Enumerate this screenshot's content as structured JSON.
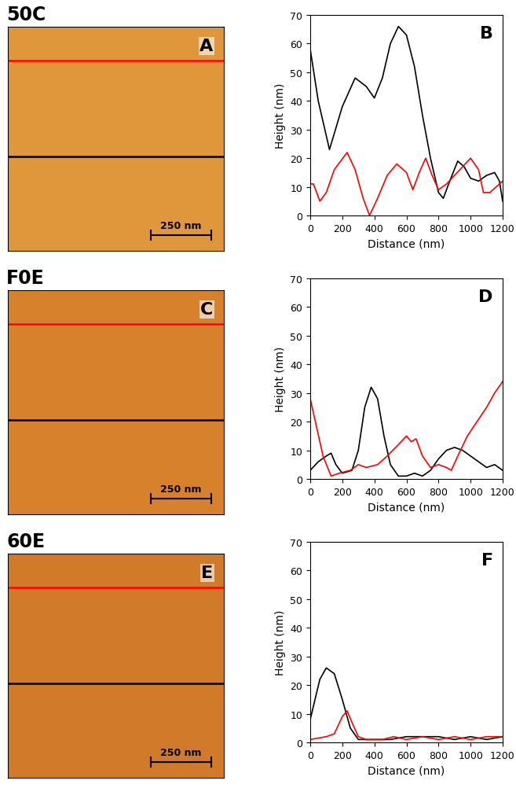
{
  "chart_data": [
    {
      "type": "line",
      "sample": "50C",
      "panel_label": "B",
      "x_label": "Distance (nm)",
      "y_label": "Height (nm)",
      "xlim": [
        0,
        1200
      ],
      "ylim": [
        0,
        70
      ],
      "xticks": [
        0,
        200,
        400,
        600,
        800,
        1000,
        1200
      ],
      "yticks": [
        0,
        10,
        20,
        30,
        40,
        50,
        60,
        70
      ],
      "series": [
        {
          "color": "#000000",
          "x": [
            0,
            50,
            120,
            200,
            280,
            350,
            400,
            450,
            500,
            550,
            600,
            650,
            700,
            750,
            800,
            830,
            870,
            920,
            960,
            1000,
            1050,
            1100,
            1150,
            1180,
            1200
          ],
          "values": [
            58,
            40,
            23,
            38,
            48,
            45,
            41,
            48,
            60,
            66,
            63,
            52,
            35,
            20,
            8,
            6,
            12,
            19,
            17,
            13,
            12,
            14,
            15,
            12,
            5
          ]
        },
        {
          "color": "#ff0000",
          "x": [
            0,
            20,
            60,
            100,
            150,
            230,
            280,
            330,
            370,
            420,
            480,
            540,
            600,
            640,
            680,
            720,
            760,
            800,
            850,
            900,
            950,
            1000,
            1050,
            1080,
            1120,
            1160,
            1200
          ],
          "values": [
            11,
            11,
            5,
            8,
            16,
            22,
            16,
            6,
            0,
            6,
            14,
            18,
            15,
            9,
            15,
            20,
            14,
            9,
            11,
            14,
            17,
            20,
            16,
            8,
            8,
            10,
            12
          ]
        }
      ]
    },
    {
      "type": "line",
      "sample": "F0E",
      "panel_label": "D",
      "x_label": "Distance (nm)",
      "y_label": "Height (nm)",
      "xlim": [
        0,
        1200
      ],
      "ylim": [
        0,
        70
      ],
      "xticks": [
        0,
        200,
        400,
        600,
        800,
        1000,
        1200
      ],
      "yticks": [
        0,
        10,
        20,
        30,
        40,
        50,
        60,
        70
      ],
      "series": [
        {
          "color": "#000000",
          "x": [
            0,
            50,
            100,
            130,
            160,
            200,
            260,
            300,
            340,
            380,
            420,
            460,
            500,
            550,
            600,
            650,
            700,
            750,
            800,
            850,
            900,
            950,
            1000,
            1050,
            1100,
            1150,
            1200
          ],
          "values": [
            3,
            6,
            8,
            9,
            5,
            2,
            3,
            10,
            25,
            32,
            28,
            15,
            5,
            1,
            1,
            2,
            1,
            3,
            7,
            10,
            11,
            10,
            8,
            6,
            4,
            5,
            3
          ]
        },
        {
          "color": "#ff0000",
          "x": [
            0,
            40,
            80,
            130,
            180,
            250,
            300,
            350,
            420,
            480,
            550,
            600,
            630,
            660,
            700,
            750,
            800,
            850,
            880,
            920,
            980,
            1040,
            1100,
            1150,
            1200
          ],
          "values": [
            28,
            18,
            8,
            1,
            2,
            3,
            5,
            4,
            5,
            8,
            12,
            15,
            13,
            14,
            8,
            4,
            5,
            4,
            3,
            8,
            15,
            20,
            25,
            30,
            34
          ]
        }
      ]
    },
    {
      "type": "line",
      "sample": "60E",
      "panel_label": "F",
      "x_label": "Distance (nm)",
      "y_label": "Height (nm)",
      "xlim": [
        0,
        1200
      ],
      "ylim": [
        0,
        70
      ],
      "xticks": [
        0,
        200,
        400,
        600,
        800,
        1000,
        1200
      ],
      "yticks": [
        0,
        10,
        20,
        30,
        40,
        50,
        60,
        70
      ],
      "series": [
        {
          "color": "#000000",
          "x": [
            0,
            30,
            60,
            100,
            150,
            200,
            250,
            300,
            400,
            500,
            600,
            700,
            800,
            900,
            1000,
            1100,
            1200
          ],
          "values": [
            8,
            15,
            22,
            26,
            24,
            15,
            5,
            1,
            1,
            1,
            2,
            2,
            2,
            1,
            2,
            1,
            2
          ]
        },
        {
          "color": "#ff0000",
          "x": [
            0,
            100,
            150,
            200,
            230,
            260,
            300,
            350,
            450,
            520,
            600,
            700,
            800,
            900,
            1000,
            1100,
            1200
          ],
          "values": [
            1,
            2,
            3,
            9,
            11,
            7,
            2,
            1,
            1,
            2,
            1,
            2,
            1,
            2,
            1,
            2,
            2
          ]
        }
      ]
    }
  ],
  "images": [
    {
      "sample": "50C",
      "panel_label": "A",
      "scale_bar": "250 nm"
    },
    {
      "sample": "F0E",
      "panel_label": "C",
      "scale_bar": "250 nm"
    },
    {
      "sample": "60E",
      "panel_label": "E",
      "scale_bar": "250 nm"
    }
  ]
}
